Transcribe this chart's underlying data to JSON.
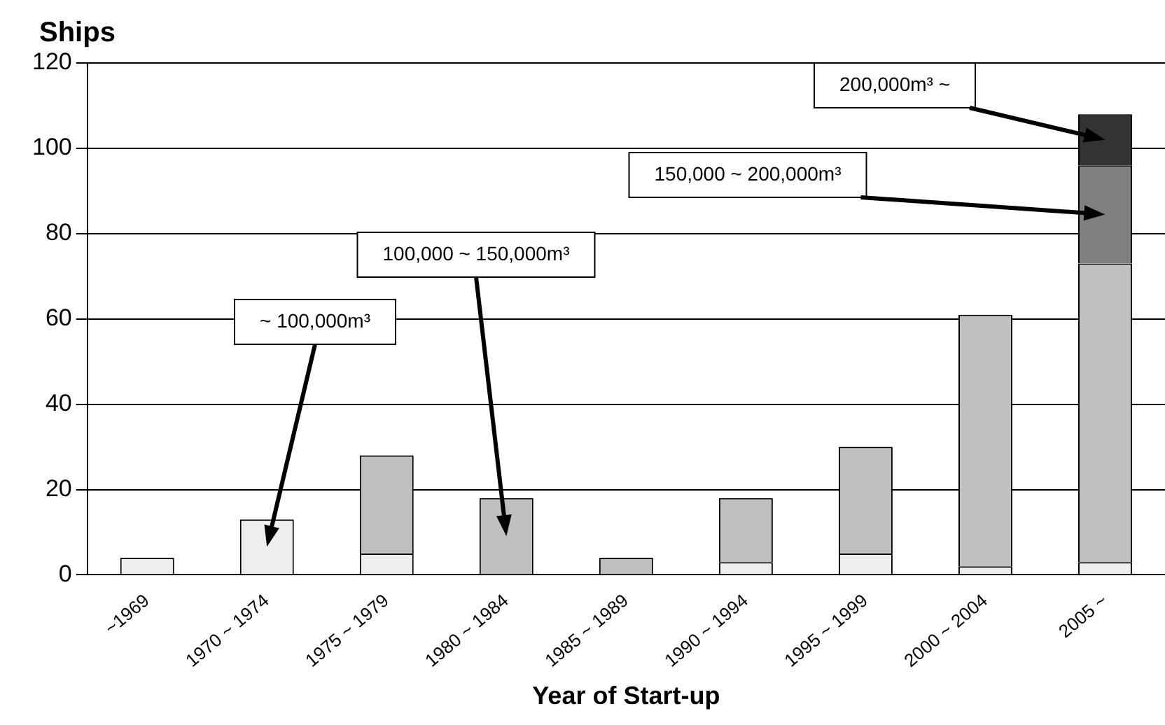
{
  "chart_data": {
    "type": "bar",
    "stacked": true,
    "ylabel": "Ships",
    "xlabel": "Year of Start-up",
    "categories": [
      "~1969",
      "1970 ~ 1974",
      "1975 ~ 1979",
      "1980 ~ 1984",
      "1985 ~ 1989",
      "1990 ~ 1994",
      "1995 ~ 1999",
      "2000 ~ 2004",
      "2005 ~"
    ],
    "series": [
      {
        "name": "~ 100,000m³",
        "color": "#eeeeee",
        "values": [
          4,
          13,
          5,
          0,
          0,
          3,
          5,
          2,
          3
        ]
      },
      {
        "name": "100,000 ~ 150,000m³",
        "color": "#c0c0c0",
        "values": [
          0,
          0,
          23,
          18,
          4,
          15,
          25,
          59,
          70
        ]
      },
      {
        "name": "150,000 ~ 200,000m³",
        "color": "#808080",
        "values": [
          0,
          0,
          0,
          0,
          0,
          0,
          0,
          0,
          23
        ]
      },
      {
        "name": "200,000m³ ~",
        "color": "#333333",
        "values": [
          0,
          0,
          0,
          0,
          0,
          0,
          0,
          0,
          12
        ]
      }
    ],
    "ylim": [
      0,
      120
    ],
    "yticks": [
      0,
      20,
      40,
      60,
      80,
      100,
      120
    ],
    "grid": "y",
    "legend": false
  }
}
